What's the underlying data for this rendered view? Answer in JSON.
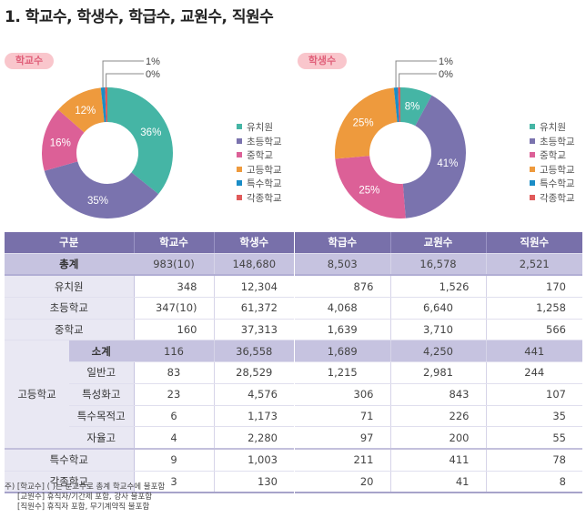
{
  "title": "1. 학교수, 학생수, 학급수, 교원수, 직원수",
  "chart_data": [
    {
      "type": "pie",
      "variant": "donut",
      "title": "학교수",
      "categories": [
        "유치원",
        "초등학교",
        "중학교",
        "고등학교",
        "특수학교",
        "각종학교"
      ],
      "values": [
        36,
        35,
        16,
        12,
        1,
        0
      ],
      "labels": [
        "36%",
        "35%",
        "16%",
        "12%",
        "1%",
        "0%"
      ],
      "colors": [
        "#45b5a5",
        "#7a73ae",
        "#dc6097",
        "#ee9a3d",
        "#1a8dc7",
        "#e05a5a"
      ],
      "legend_position": "right"
    },
    {
      "type": "pie",
      "variant": "donut",
      "title": "학생수",
      "categories": [
        "유치원",
        "초등학교",
        "중학교",
        "고등학교",
        "특수학교",
        "각종학교"
      ],
      "values": [
        8,
        41,
        25,
        25,
        1,
        0
      ],
      "labels": [
        "8%",
        "41%",
        "25%",
        "25%",
        "1%",
        "0%"
      ],
      "colors": [
        "#45b5a5",
        "#7a73ae",
        "#dc6097",
        "#ee9a3d",
        "#1a8dc7",
        "#e05a5a"
      ],
      "legend_position": "right"
    }
  ],
  "table": {
    "headers": [
      "구분",
      "학교수",
      "학생수",
      "학급수",
      "교원수",
      "직원수"
    ],
    "rows": {
      "total": {
        "label": "총계",
        "values": [
          "983(10)",
          "148,680",
          "8,503",
          "16,578",
          "2,521"
        ]
      },
      "kinder": {
        "label": "유치원",
        "values": [
          "348",
          "12,304",
          "876",
          "1,526",
          "170"
        ]
      },
      "elem": {
        "label": "초등학교",
        "values": [
          "347(10)",
          "61,372",
          "4,068",
          "6,640",
          "1,258"
        ]
      },
      "middle": {
        "label": "중학교",
        "values": [
          "160",
          "37,313",
          "1,639",
          "3,710",
          "566"
        ]
      },
      "high_group": "고등학교",
      "high_sub": {
        "label": "소계",
        "values": [
          "116",
          "36,558",
          "1,689",
          "4,250",
          "441"
        ]
      },
      "high_general": {
        "label": "일반고",
        "values": [
          "83",
          "28,529",
          "1,215",
          "2,981",
          "244"
        ]
      },
      "high_special": {
        "label": "특성화고",
        "values": [
          "23",
          "4,576",
          "306",
          "843",
          "107"
        ]
      },
      "high_purpose": {
        "label": "특수목적고",
        "values": [
          "6",
          "1,173",
          "71",
          "226",
          "35"
        ]
      },
      "high_autonomous": {
        "label": "자율고",
        "values": [
          "4",
          "2,280",
          "97",
          "200",
          "55"
        ]
      },
      "special": {
        "label": "특수학교",
        "values": [
          "9",
          "1,003",
          "211",
          "411",
          "78"
        ]
      },
      "misc": {
        "label": "각종학교",
        "values": [
          "3",
          "130",
          "20",
          "41",
          "8"
        ]
      }
    }
  },
  "notes": [
    "주) [학교수] ( )는 분교수로 총계 학교수에 불포함",
    "[교원수] 휴직자/기간제 포함, 강사 불포함",
    "[직원수] 휴직자 포함, 무기계약직 불포함"
  ]
}
